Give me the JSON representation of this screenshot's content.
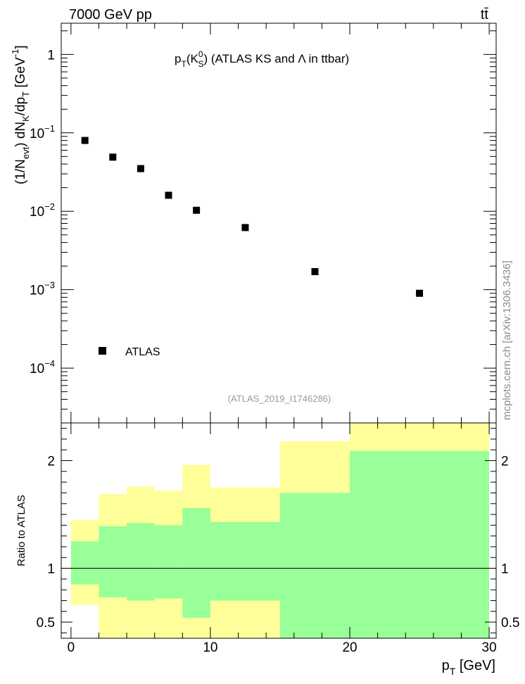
{
  "header": {
    "energy_label": "7000 GeV pp",
    "process_label": "tt̄"
  },
  "watermark": "mcplots.cern.ch [arXiv:1306.3436]",
  "chart_data": [
    {
      "type": "scatter",
      "title": "p_T(K_S^0) (ATLAS KS and Λ in ttbar)",
      "title_parts": {
        "p": "p",
        "T": "T",
        "K": "(K",
        "zero": "0",
        "S": "S",
        "rest": ") (ATLAS KS and Λ in ttbar)"
      },
      "analysis_label": "(ATLAS_2019_I1746286)",
      "ylabel_parts": {
        "a": "(1/N",
        "evt": "evt",
        "b": ") dN",
        "K": "K",
        "c": "/dp",
        "T": "T",
        "d": " [GeV",
        "exp": "-1",
        "e": "]"
      },
      "yscale": "log",
      "ylim": [
        2e-05,
        2.5
      ],
      "xlim": [
        -0.7,
        30.5
      ],
      "y_ticks": [
        {
          "value": 1,
          "label": "1",
          "exp": ""
        },
        {
          "value": 0.1,
          "label": "10",
          "exp": "−1"
        },
        {
          "value": 0.01,
          "label": "10",
          "exp": "−2"
        },
        {
          "value": 0.001,
          "label": "10",
          "exp": "−3"
        },
        {
          "value": 0.0001,
          "label": "10",
          "exp": "−4"
        }
      ],
      "series": [
        {
          "name": "ATLAS",
          "x": [
            1,
            3,
            5,
            7,
            9,
            12.5,
            17.5,
            25
          ],
          "y": [
            0.08,
            0.049,
            0.035,
            0.016,
            0.0103,
            0.0062,
            0.0017,
            0.0009
          ]
        }
      ],
      "legend_position": "bottom-left"
    },
    {
      "type": "area",
      "ylabel": "Ratio to ATLAS",
      "xlabel_parts": {
        "p": "p",
        "T": "T",
        "rest": " [GeV]"
      },
      "ylim": [
        0.35,
        2.35
      ],
      "xlim": [
        -0.7,
        30.5
      ],
      "x_ticks": [
        {
          "value": 0,
          "label": "0"
        },
        {
          "value": 10,
          "label": "10"
        },
        {
          "value": 20,
          "label": "20"
        },
        {
          "value": 30,
          "label": "30"
        }
      ],
      "y_ticks": [
        {
          "value": 0.5,
          "label": "0.5"
        },
        {
          "value": 1,
          "label": "1"
        },
        {
          "value": 2,
          "label": "2"
        }
      ],
      "reference_line": 1,
      "bins": [
        {
          "lo": 0,
          "hi": 2,
          "inner": [
            0.85,
            1.25
          ],
          "outer": [
            0.66,
            1.45
          ]
        },
        {
          "lo": 2,
          "hi": 4,
          "inner": [
            0.73,
            1.39
          ],
          "outer": [
            0.35,
            1.69
          ]
        },
        {
          "lo": 4,
          "hi": 6,
          "inner": [
            0.7,
            1.42
          ],
          "outer": [
            0.35,
            1.76
          ]
        },
        {
          "lo": 6,
          "hi": 8,
          "inner": [
            0.72,
            1.4
          ],
          "outer": [
            0.35,
            1.72
          ]
        },
        {
          "lo": 8,
          "hi": 10,
          "inner": [
            0.54,
            1.56
          ],
          "outer": [
            0.35,
            1.96
          ]
        },
        {
          "lo": 10,
          "hi": 15,
          "inner": [
            0.7,
            1.43
          ],
          "outer": [
            0.35,
            1.75
          ]
        },
        {
          "lo": 15,
          "hi": 20,
          "inner": [
            0.35,
            1.7
          ],
          "outer": [
            0.35,
            2.18
          ]
        },
        {
          "lo": 20,
          "hi": 30,
          "inner": [
            0.35,
            2.09
          ],
          "outer": [
            0.35,
            2.35
          ]
        }
      ],
      "colors": {
        "inner": "#99ff99",
        "outer": "#ffff99",
        "line": "#000000"
      }
    }
  ]
}
